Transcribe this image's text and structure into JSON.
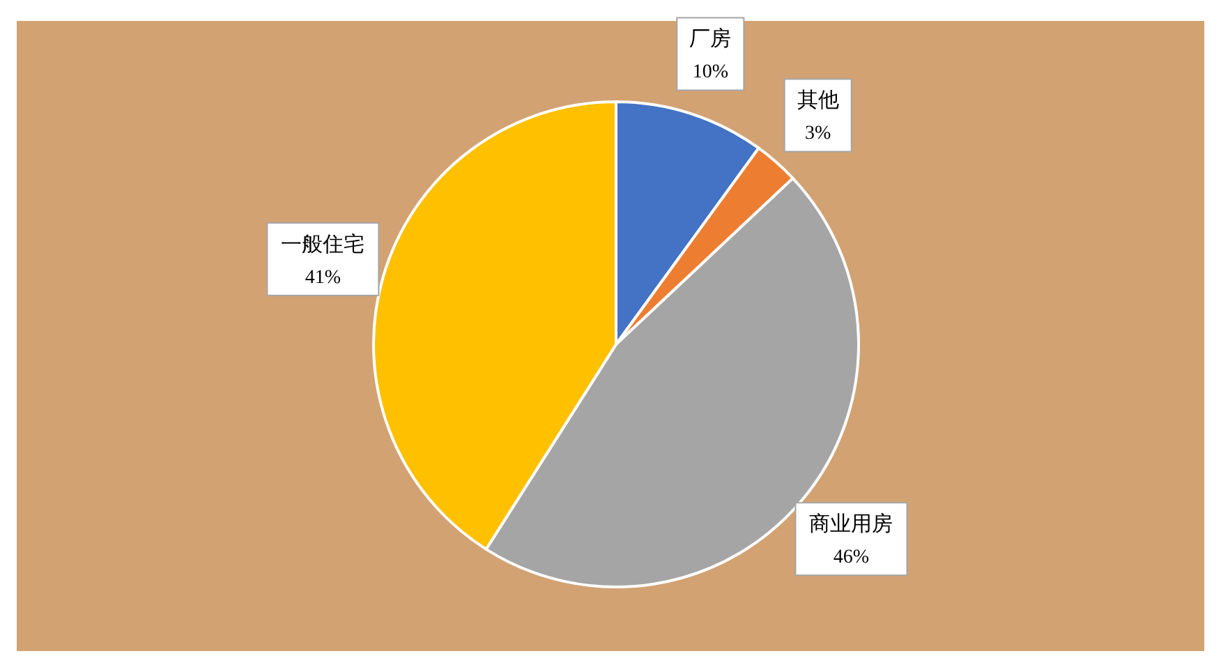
{
  "chart_data": {
    "type": "pie",
    "categories": [
      "厂房",
      "其他",
      "商业用房",
      "一般住宅"
    ],
    "values": [
      10,
      3,
      46,
      41
    ],
    "value_labels": [
      "10%",
      "3%",
      "46%",
      "41%"
    ],
    "colors": [
      "#4472c4",
      "#ed7d31",
      "#a5a5a5",
      "#ffc000"
    ]
  }
}
